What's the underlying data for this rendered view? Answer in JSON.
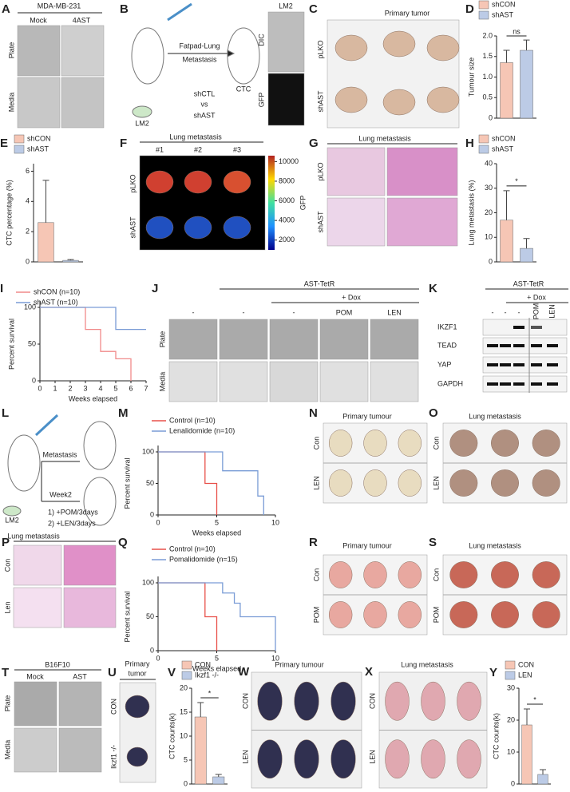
{
  "panels": {
    "A": {
      "letter": "A",
      "title": "MDA-MB-231",
      "columns": [
        "Mock",
        "4AST"
      ],
      "rows": [
        "Plate",
        "Media"
      ]
    },
    "B": {
      "letter": "B",
      "labels": [
        "Fatpad-Lung",
        "Metastasis",
        "CTC",
        "LM2",
        "shCTL",
        "vs",
        "shAST"
      ],
      "image_title": "LM2",
      "image_rows": [
        "DIC",
        "GFP"
      ]
    },
    "C": {
      "letter": "C",
      "title": "Primary tumor",
      "rows": [
        "pLKO",
        "shAST"
      ]
    },
    "D": {
      "letter": "D",
      "chart": {
        "type": "bar",
        "ylabel": "Tumour size",
        "annotation": "ns",
        "ylim": [
          0,
          2
        ],
        "yticks": [
          0,
          0.5,
          {
            "value": 1,
            "label": "1.0"
          },
          1.5,
          {
            "value": 2,
            "label": "2.0"
          }
        ],
        "series": [
          {
            "name": "shCON",
            "color": "#f6c6b5",
            "values": [
              1.35
            ],
            "errors": [
              0.3
            ]
          },
          {
            "name": "shAST",
            "color": "#bccbe6",
            "values": [
              1.65
            ],
            "errors": [
              0.25
            ]
          }
        ]
      }
    },
    "E": {
      "letter": "E",
      "chart": {
        "type": "bar",
        "ylabel": "CTC percentage (%)",
        "ylim": [
          0,
          6.5
        ],
        "yticks": [
          0,
          2,
          4,
          6
        ],
        "series": [
          {
            "name": "shCON",
            "color": "#f6c6b5",
            "values": [
              2.6
            ],
            "errors": [
              2.8
            ]
          },
          {
            "name": "shAST",
            "color": "#bccbe6",
            "values": [
              0.1
            ],
            "errors": [
              0.05
            ]
          }
        ]
      }
    },
    "F": {
      "letter": "F",
      "title": "Lung metastasis",
      "columns": [
        "#1",
        "#2",
        "#3"
      ],
      "rows": [
        "pLKO",
        "shAST"
      ],
      "colorbar": {
        "label": "GFP",
        "lim": [
          1000,
          10600
        ],
        "ticks": [
          2000,
          4000,
          6000,
          8000,
          10000
        ]
      }
    },
    "G": {
      "letter": "G",
      "title": "Lung metastasis",
      "rows": [
        "pLKO",
        "shAST"
      ]
    },
    "H": {
      "letter": "H",
      "chart": {
        "type": "bar",
        "ylabel": "Lung metastasis (%)",
        "annotation": "*",
        "ylim": [
          0,
          40
        ],
        "yticks": [
          0,
          10,
          20,
          30,
          40
        ],
        "series": [
          {
            "name": "shCON",
            "color": "#f6c6b5",
            "values": [
              17
            ],
            "errors": [
              12
            ]
          },
          {
            "name": "shAST",
            "color": "#bccbe6",
            "values": [
              5.5
            ],
            "errors": [
              4
            ]
          }
        ]
      }
    },
    "I": {
      "letter": "I",
      "chart": {
        "type": "line",
        "ylabel": "Percent survival",
        "xlabel": "Weeks elapsed",
        "xlim": [
          0,
          7
        ],
        "xticks": [
          0,
          1,
          2,
          3,
          4,
          5,
          6,
          7
        ],
        "ylim": [
          0,
          100
        ],
        "yticks": [
          0,
          50,
          100
        ],
        "series": [
          {
            "name": "shCON (n=10)",
            "color": "#f08a8a",
            "x": [
              0,
              3,
              4,
              5,
              6
            ],
            "values": [
              100,
              70,
              40,
              30,
              0
            ]
          },
          {
            "name": "shAST (n=10)",
            "color": "#7a9cd6",
            "x": [
              0,
              5,
              7
            ],
            "values": [
              100,
              70,
              70
            ]
          }
        ]
      }
    },
    "J": {
      "letter": "J",
      "group": "AST-TetR",
      "treatment": "+ Dox",
      "lanes": [
        "-",
        "-",
        "-",
        "POM",
        "LEN"
      ],
      "rows": [
        "Plate",
        "Media"
      ]
    },
    "K": {
      "letter": "K",
      "group": "AST-TetR",
      "treatment": "+ Dox",
      "lanes": [
        "-",
        "-",
        "-",
        "POM",
        "LEN"
      ],
      "rows": [
        "IKZF1",
        "TEAD",
        "YAP",
        "GAPDH"
      ]
    },
    "L": {
      "letter": "L",
      "labels": [
        "Metastasis",
        "Week2",
        "LM2",
        "1) +POM/3days",
        "2) +LEN/3days"
      ]
    },
    "M": {
      "letter": "M",
      "chart": {
        "type": "line",
        "ylabel": "Percent survival",
        "xlabel": "Weeks elapsed",
        "xlim": [
          0,
          10
        ],
        "xticks": [
          0,
          5,
          10
        ],
        "ylim": [
          0,
          100
        ],
        "yticks": [
          0,
          50,
          100
        ],
        "series": [
          {
            "name": "Control (n=10)",
            "color": "#e8504a",
            "x": [
              0,
              4,
              5
            ],
            "values": [
              100,
              50,
              0
            ]
          },
          {
            "name": "Lenalidomide (n=10)",
            "color": "#7a9cd6",
            "x": [
              0,
              5.5,
              8.5,
              9
            ],
            "values": [
              100,
              70,
              30,
              0
            ]
          }
        ]
      }
    },
    "N": {
      "letter": "N",
      "title": "Primary tumour",
      "rows": [
        "Con",
        "LEN"
      ]
    },
    "O": {
      "letter": "O",
      "title": "Lung metastasis",
      "rows": [
        "Con",
        "LEN"
      ]
    },
    "P": {
      "letter": "P",
      "title": "Lung metastasis",
      "rows": [
        "Con",
        "Len"
      ]
    },
    "Q": {
      "letter": "Q",
      "chart": {
        "type": "line",
        "ylabel": "Percent survival",
        "xlabel": "Weeks elapsed",
        "xlim": [
          0,
          10
        ],
        "xticks": [
          0,
          5,
          10
        ],
        "ylim": [
          0,
          100
        ],
        "yticks": [
          0,
          50,
          100
        ],
        "series": [
          {
            "name": "Control (n=10)",
            "color": "#e8504a",
            "x": [
              0,
              4,
              5
            ],
            "values": [
              100,
              50,
              0
            ]
          },
          {
            "name": "Pomalidomide (n=15)",
            "color": "#7a9cd6",
            "x": [
              0,
              5.5,
              6.5,
              7,
              10
            ],
            "values": [
              100,
              85,
              70,
              50,
              0
            ]
          }
        ]
      }
    },
    "R": {
      "letter": "R",
      "title": "Primary tumour",
      "rows": [
        "Con",
        "POM"
      ]
    },
    "S": {
      "letter": "S",
      "title": "Lung metastasis",
      "rows": [
        "Con",
        "POM"
      ]
    },
    "T": {
      "letter": "T",
      "title": "B16F10",
      "columns": [
        "Mock",
        "AST"
      ],
      "rows": [
        "Plate",
        "Media"
      ]
    },
    "U": {
      "letter": "U",
      "title": [
        "Primary",
        "tumor"
      ],
      "rows": [
        "CON",
        "Ikzf1 -/-"
      ]
    },
    "V": {
      "letter": "V",
      "chart": {
        "type": "bar",
        "ylabel": "CTC counts(k)",
        "annotation": "*",
        "ylim": [
          0,
          20
        ],
        "yticks": [
          0,
          5,
          10,
          15,
          20
        ],
        "series": [
          {
            "name": "CON",
            "color": "#f6c6b5",
            "values": [
              14
            ],
            "errors": [
              3
            ]
          },
          {
            "name": "Ikzf1 -/-",
            "color": "#bccbe6",
            "values": [
              1.5
            ],
            "errors": [
              0.5
            ]
          }
        ]
      }
    },
    "W": {
      "letter": "W",
      "title": "Primary tumour",
      "rows": [
        "CON",
        "LEN"
      ]
    },
    "X": {
      "letter": "X",
      "title": "Lung metastasis",
      "rows": [
        "CON",
        "LEN"
      ]
    },
    "Y": {
      "letter": "Y",
      "chart": {
        "type": "bar",
        "ylabel": "CTC counts(k)",
        "annotation": "*",
        "ylim": [
          0,
          30
        ],
        "yticks": [
          0,
          10,
          20,
          30
        ],
        "series": [
          {
            "name": "CON",
            "color": "#f6c6b5",
            "values": [
              18.5
            ],
            "errors": [
              5
            ]
          },
          {
            "name": "LEN",
            "color": "#bccbe6",
            "values": [
              3
            ],
            "errors": [
              1.5
            ]
          }
        ]
      }
    }
  }
}
